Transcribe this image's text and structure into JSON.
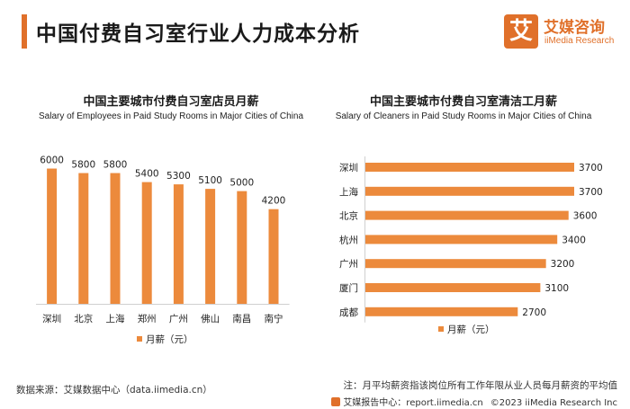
{
  "page_title": "中国付费自习室行业人力成本分析",
  "logo": {
    "mark": "艾",
    "cn": "艾媒咨询",
    "en": "iiMedia Research"
  },
  "colors": {
    "accent": "#e0702a",
    "bar": "#ec8a3c",
    "axis": "#d0d0d0"
  },
  "chart_data": [
    {
      "type": "bar",
      "orientation": "vertical",
      "title": "中国主要城市付费自习室店员月薪",
      "subtitle": "Salary of Employees in Paid Study Rooms in Major Cities of China",
      "categories": [
        "深圳",
        "北京",
        "上海",
        "郑州",
        "广州",
        "佛山",
        "南昌",
        "南宁"
      ],
      "values": [
        6000,
        5800,
        5800,
        5400,
        5300,
        5100,
        5000,
        4200
      ],
      "legend": "月薪（元）",
      "ylim": [
        0,
        6300
      ]
    },
    {
      "type": "bar",
      "orientation": "horizontal",
      "title": "中国主要城市付费自习室清洁工月薪",
      "subtitle": "Salary of Cleaners in Paid Study Rooms in Major Cities of China",
      "categories": [
        "深圳",
        "上海",
        "北京",
        "杭州",
        "广州",
        "厦门",
        "成都"
      ],
      "values": [
        3700,
        3700,
        3600,
        3400,
        3200,
        3100,
        2700
      ],
      "legend": "月薪（元）",
      "xlim": [
        0,
        3700
      ]
    }
  ],
  "footer": {
    "source": "数据来源：艾媒数据中心（data.iimedia.cn）",
    "note": "注：月平均薪资指该岗位所有工作年限从业人员每月薪资的平均值",
    "center": "艾媒报告中心：report.iimedia.cn",
    "copyright": "©2023  iiMedia Research  Inc"
  }
}
